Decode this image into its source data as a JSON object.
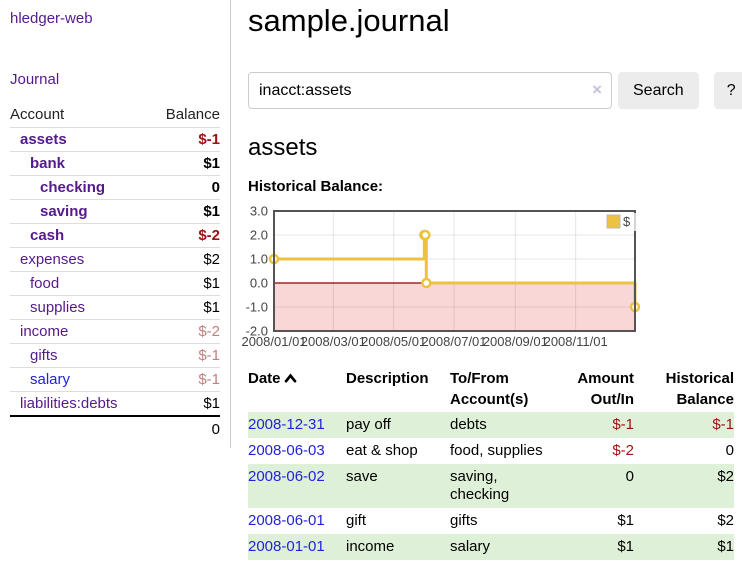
{
  "colors": {
    "link_purple": "#551a8b",
    "link_blue": "#2222dd",
    "negative_strong": "#9e1111",
    "negative_light": "#c17f7f",
    "row_stripe_green": "#dff0d8",
    "chart_line_yellow": "#edc240",
    "chart_border_gray": "#545454",
    "negative_region_pink": "#f9d7d7",
    "zero_line_dark_red": "#8b0000"
  },
  "sidebar": {
    "brand": "hledger-web",
    "journal_label": "Journal",
    "columns": {
      "account": "Account",
      "balance": "Balance"
    },
    "accounts": [
      {
        "name": "assets",
        "level": 1,
        "bold": true,
        "link_color": "purple",
        "balance": "$-1",
        "balance_class": "neg-strong"
      },
      {
        "name": "bank",
        "level": 2,
        "bold": true,
        "link_color": "purple",
        "balance": "$1",
        "balance_class": ""
      },
      {
        "name": "checking",
        "level": 3,
        "bold": true,
        "link_color": "purple",
        "balance": "0",
        "balance_class": ""
      },
      {
        "name": "saving",
        "level": 3,
        "bold": true,
        "link_color": "purple",
        "balance": "$1",
        "balance_class": ""
      },
      {
        "name": "cash",
        "level": 2,
        "bold": true,
        "link_color": "purple",
        "balance": "$-2",
        "balance_class": "neg-strong"
      },
      {
        "name": "expenses",
        "level": 1,
        "bold": false,
        "link_color": "purple",
        "balance": "$2",
        "balance_class": ""
      },
      {
        "name": "food",
        "level": 2,
        "bold": false,
        "link_color": "purple",
        "balance": "$1",
        "balance_class": ""
      },
      {
        "name": "supplies",
        "level": 2,
        "bold": false,
        "link_color": "purple",
        "balance": "$1",
        "balance_class": ""
      },
      {
        "name": "income",
        "level": 1,
        "bold": false,
        "link_color": "purple",
        "balance": "$-2",
        "balance_class": "neg-light"
      },
      {
        "name": "gifts",
        "level": 2,
        "bold": false,
        "link_color": "purple",
        "balance": "$-1",
        "balance_class": "neg-light"
      },
      {
        "name": "salary",
        "level": 2,
        "bold": false,
        "link_color": "blue",
        "balance": "$-1",
        "balance_class": "neg-light"
      },
      {
        "name": "liabilities:debts",
        "level": 1,
        "bold": false,
        "link_color": "purple",
        "balance": "$1",
        "balance_class": ""
      }
    ],
    "total": "0"
  },
  "main": {
    "title": "sample.journal",
    "search": {
      "value": "inacct:assets",
      "clear_icon": "×",
      "button_label": "Search",
      "help_label": "?"
    },
    "account_heading": "assets",
    "chart_title": "Historical Balance:"
  },
  "chart_data": {
    "type": "line",
    "title": "Historical Balance:",
    "step": true,
    "series": [
      {
        "name": "$",
        "color": "#edc240",
        "points": [
          [
            "2008-01-01",
            1
          ],
          [
            "2008-06-01",
            2
          ],
          [
            "2008-06-02",
            2
          ],
          [
            "2008-06-03",
            0
          ],
          [
            "2008-12-31",
            -1
          ]
        ]
      }
    ],
    "x_range": [
      "2008-01-01",
      "2008-12-31"
    ],
    "x_ticks": [
      "2008/01/01",
      "2008/03/01",
      "2008/05/01",
      "2008/07/01",
      "2008/09/01",
      "2008/11/01"
    ],
    "y_ticks": [
      "3.0",
      "2.0",
      "1.0",
      "0.0",
      "-1.0",
      "-2.0"
    ],
    "ylim": [
      -2,
      3
    ],
    "grid": true,
    "legend": {
      "label": "$",
      "position": "top-right"
    },
    "negative_region_color": "#f9d7d7",
    "zero_line_color": "#8b0000"
  },
  "register": {
    "columns": [
      "Date",
      "Description",
      "To/From Account(s)",
      "Amount Out/In",
      "Historical Balance"
    ],
    "sort": {
      "column": "Date",
      "direction": "ascending"
    },
    "rows": [
      {
        "date": "2008-12-31",
        "description": "pay off",
        "tofrom": "debts",
        "amount": "$-1",
        "amount_neg": true,
        "balance": "$-1",
        "balance_neg": true
      },
      {
        "date": "2008-06-03",
        "description": "eat & shop",
        "tofrom": "food, supplies",
        "amount": "$-2",
        "amount_neg": true,
        "balance": "0",
        "balance_neg": false
      },
      {
        "date": "2008-06-02",
        "description": "save",
        "tofrom": "saving,\nchecking",
        "amount": "0",
        "amount_neg": false,
        "balance": "$2",
        "balance_neg": false
      },
      {
        "date": "2008-06-01",
        "description": "gift",
        "tofrom": "gifts",
        "amount": "$1",
        "amount_neg": false,
        "balance": "$2",
        "balance_neg": false
      },
      {
        "date": "2008-01-01",
        "description": "income",
        "tofrom": "salary",
        "amount": "$1",
        "amount_neg": false,
        "balance": "$1",
        "balance_neg": false
      }
    ]
  }
}
